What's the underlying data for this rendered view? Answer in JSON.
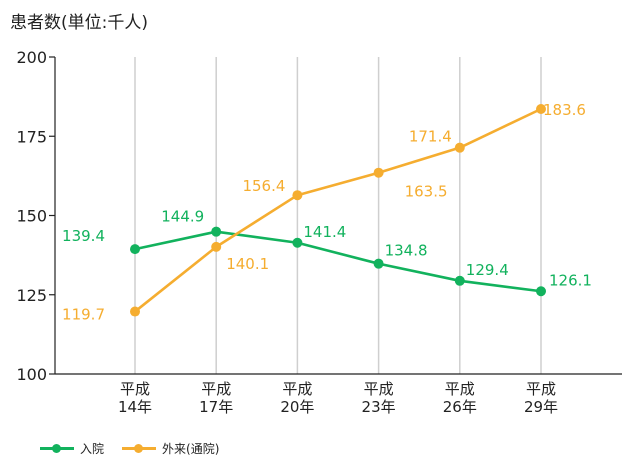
{
  "chart_data": {
    "type": "line",
    "ylabel": "患者数(単位:千人)",
    "ylim": [
      100,
      200
    ],
    "yticks": [
      100,
      125,
      150,
      175,
      200
    ],
    "categories": [
      "平成\n14年",
      "平成\n17年",
      "平成\n20年",
      "平成\n23年",
      "平成\n26年",
      "平成\n29年"
    ],
    "series": [
      {
        "name": "入院",
        "color": "#12b25d",
        "values": [
          139.4,
          144.9,
          141.4,
          134.8,
          129.4,
          126.1
        ],
        "labels": [
          "139.4",
          "144.9",
          "141.4",
          "134.8",
          "129.4",
          "126.1"
        ]
      },
      {
        "name": "外来(通院)",
        "color": "#f5ad30",
        "values": [
          119.7,
          140.1,
          156.4,
          163.5,
          171.4,
          183.6
        ],
        "labels": [
          "119.7",
          "140.1",
          "156.4",
          "163.5",
          "171.4",
          "183.6"
        ]
      }
    ],
    "grid": "vertical",
    "legend_position": "bottom-left"
  }
}
